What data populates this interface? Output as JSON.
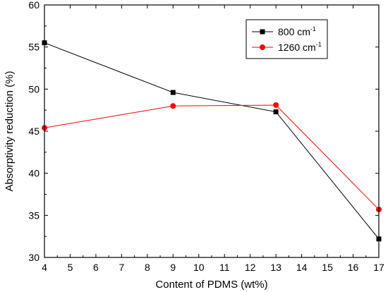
{
  "chart_data": {
    "type": "line",
    "xlabel": "Content of PDMS (wt%)",
    "ylabel": "Absorptivity reduction (%)",
    "xlim": [
      4,
      17
    ],
    "ylim": [
      30,
      60
    ],
    "x_ticks": [
      4,
      5,
      6,
      7,
      8,
      9,
      10,
      11,
      12,
      13,
      14,
      15,
      16,
      17
    ],
    "y_ticks": [
      30,
      35,
      40,
      45,
      50,
      55,
      60
    ],
    "legend_position": "top-right",
    "grid": false,
    "series": [
      {
        "name": "800 cm",
        "superscript": "-1",
        "color": "#000000",
        "marker": "square",
        "x": [
          4,
          9,
          13,
          17
        ],
        "y": [
          55.5,
          49.6,
          47.3,
          32.2
        ]
      },
      {
        "name": "1260 cm",
        "superscript": "-1",
        "color": "#ff0000",
        "marker": "circle",
        "x": [
          4,
          9,
          13,
          17
        ],
        "y": [
          45.4,
          48.0,
          48.1,
          35.7
        ]
      }
    ]
  }
}
